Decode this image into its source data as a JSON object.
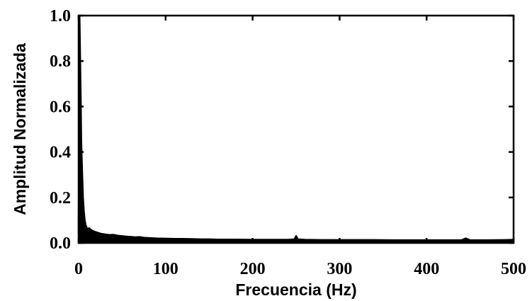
{
  "chart_data": {
    "type": "line",
    "title": "",
    "xlabel": "Frecuencia (Hz)",
    "ylabel": "Amplitud Normalizada",
    "xlim": [
      0,
      500
    ],
    "ylim": [
      0,
      1.0
    ],
    "xticks": [
      "0",
      "100",
      "200",
      "300",
      "400",
      "500"
    ],
    "yticks": [
      "0.0",
      "0.2",
      "0.4",
      "0.6",
      "0.8",
      "1.0"
    ],
    "grid": false,
    "legend": "none",
    "line_color": "#000000",
    "series": [
      {
        "x": [
          0,
          0.5,
          1,
          1.5,
          2,
          2.5,
          3,
          4,
          5,
          6,
          7,
          8,
          10,
          12,
          15,
          18,
          22,
          26,
          30,
          35,
          40,
          45,
          50,
          55,
          60,
          65,
          70,
          75,
          80,
          90,
          100,
          110,
          120,
          130,
          140,
          150,
          160,
          180,
          200,
          220,
          240,
          248,
          250,
          252,
          260,
          280,
          300,
          320,
          340,
          360,
          380,
          400,
          420,
          440,
          445,
          450,
          470,
          490,
          500
        ],
        "y": [
          0.04,
          0.5,
          1.0,
          0.88,
          0.75,
          0.62,
          0.45,
          0.32,
          0.2,
          0.14,
          0.1,
          0.08,
          0.06,
          0.065,
          0.055,
          0.05,
          0.045,
          0.04,
          0.038,
          0.035,
          0.036,
          0.032,
          0.03,
          0.028,
          0.027,
          0.025,
          0.026,
          0.023,
          0.022,
          0.02,
          0.019,
          0.018,
          0.018,
          0.017,
          0.016,
          0.016,
          0.015,
          0.015,
          0.014,
          0.014,
          0.014,
          0.016,
          0.03,
          0.016,
          0.014,
          0.013,
          0.013,
          0.013,
          0.013,
          0.012,
          0.012,
          0.012,
          0.012,
          0.012,
          0.02,
          0.012,
          0.012,
          0.013,
          0.014
        ]
      }
    ]
  }
}
